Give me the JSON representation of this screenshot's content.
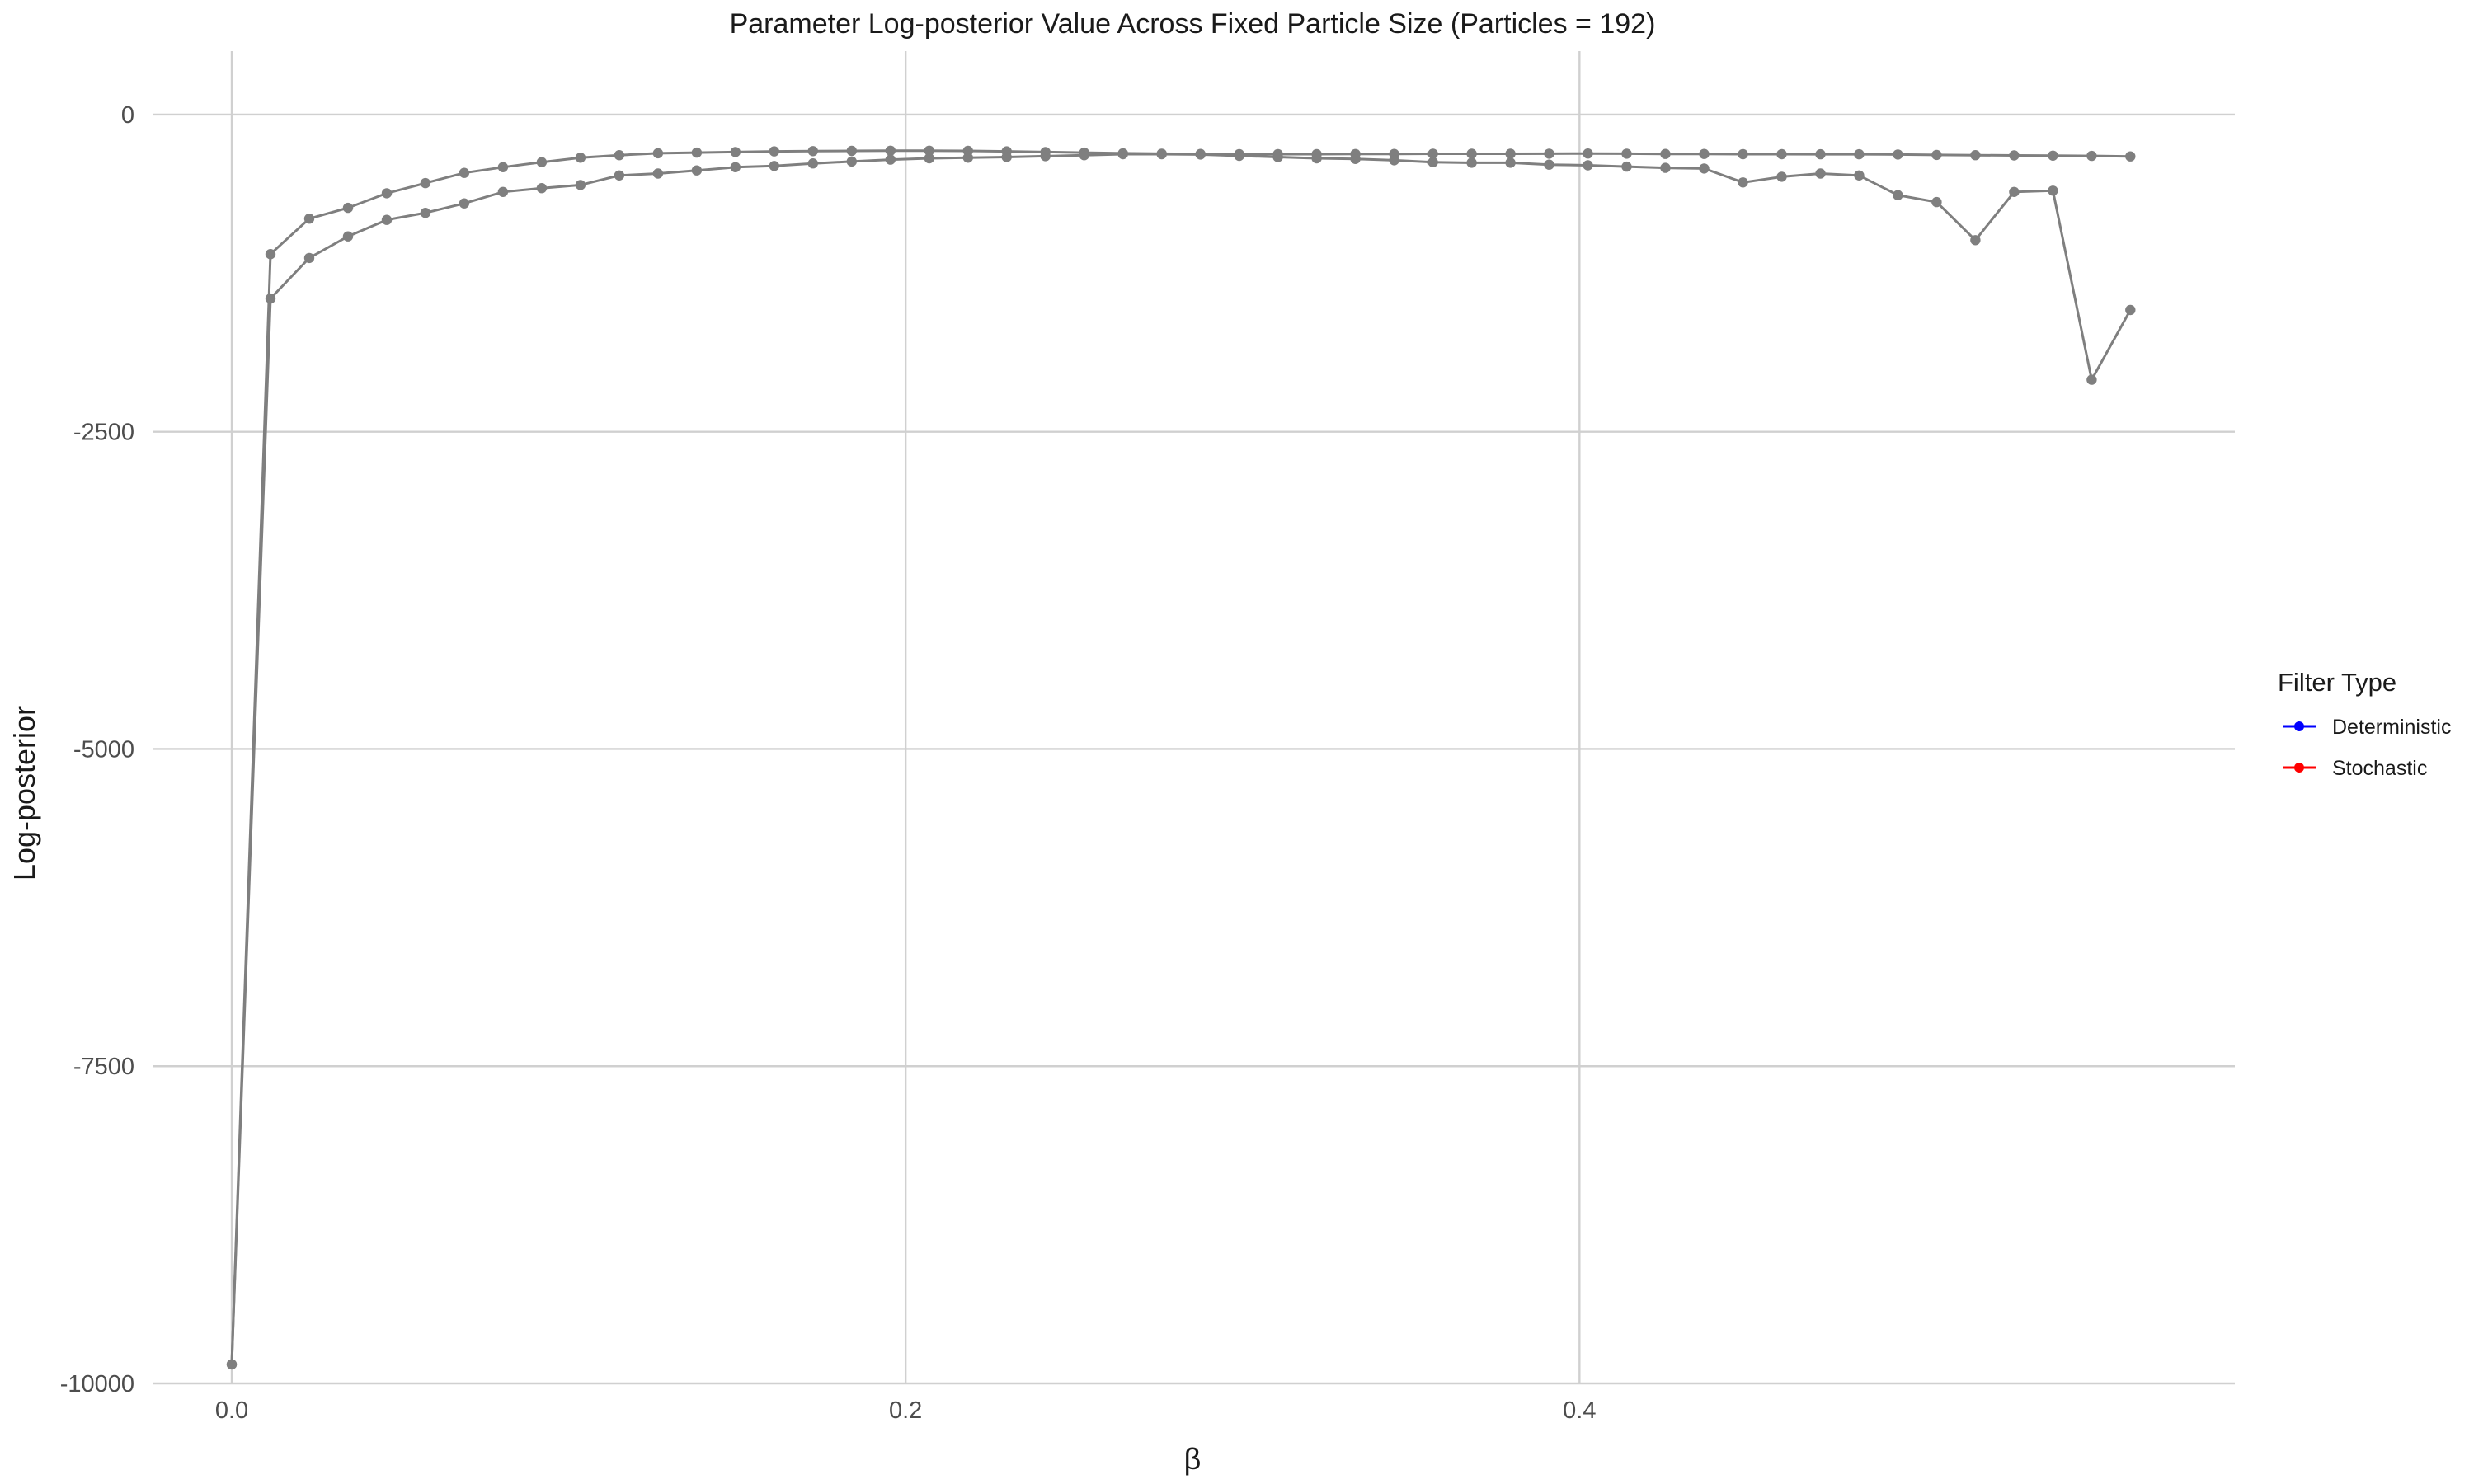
{
  "chart_data": {
    "type": "line",
    "title": "Parameter Log-posterior Value Across Fixed Particle Size (Particles = 192)",
    "xlabel": "β",
    "ylabel": "Log-posterior",
    "xlim": [
      -0.0235,
      0.5945
    ],
    "ylim": [
      -10000,
      500
    ],
    "x_ticks": [
      0.0,
      0.2,
      0.4
    ],
    "x_tick_labels": [
      "0.0",
      "0.2",
      "0.4"
    ],
    "y_ticks": [
      0,
      -2500,
      -5000,
      -7500,
      -10000
    ],
    "y_tick_labels": [
      "0",
      "-2500",
      "-5000",
      "-7500",
      "-10000"
    ],
    "grid": true,
    "legend": {
      "title": "Filter Type",
      "position": "right",
      "entries": [
        {
          "label": "Deterministic",
          "color": "#0000ff"
        },
        {
          "label": "Stochastic",
          "color": "#ff0000"
        }
      ]
    },
    "line_color": "#7f7f7f",
    "x": [
      0.0,
      0.0115,
      0.023,
      0.0345,
      0.046,
      0.0575,
      0.069,
      0.0805,
      0.092,
      0.1035,
      0.115,
      0.1265,
      0.138,
      0.1495,
      0.161,
      0.1725,
      0.184,
      0.1955,
      0.207,
      0.2185,
      0.23,
      0.2415,
      0.253,
      0.2645,
      0.276,
      0.2875,
      0.299,
      0.3105,
      0.322,
      0.3335,
      0.345,
      0.3565,
      0.368,
      0.3795,
      0.391,
      0.4025,
      0.414,
      0.4255,
      0.437,
      0.4485,
      0.46,
      0.4715,
      0.483,
      0.4945,
      0.506,
      0.5175,
      0.529,
      0.5405,
      0.552,
      0.5635
    ],
    "series": [
      {
        "values": [
          -9850,
          -1100,
          -820,
          -735,
          -620,
          -540,
          -460,
          -415,
          -375,
          -340,
          -320,
          -305,
          -300,
          -295,
          -290,
          -288,
          -286,
          -285,
          -285,
          -286,
          -290,
          -295,
          -300,
          -305,
          -308,
          -310,
          -312,
          -312,
          -312,
          -311,
          -310,
          -309,
          -309,
          -309,
          -308,
          -307,
          -308,
          -310,
          -310,
          -312,
          -312,
          -313,
          -313,
          -315,
          -318,
          -320,
          -322,
          -324,
          -326,
          -330
        ]
      },
      {
        "values": [
          -9850,
          -1450,
          -1130,
          -960,
          -830,
          -775,
          -700,
          -610,
          -580,
          -555,
          -480,
          -465,
          -440,
          -415,
          -405,
          -385,
          -370,
          -355,
          -345,
          -340,
          -335,
          -328,
          -320,
          -312,
          -312,
          -315,
          -325,
          -335,
          -345,
          -350,
          -360,
          -375,
          -380,
          -380,
          -395,
          -400,
          -410,
          -420,
          -425,
          -535,
          -490,
          -465,
          -480,
          -635,
          -690,
          -990,
          -610,
          -600,
          -2090,
          -1540
        ]
      }
    ]
  }
}
